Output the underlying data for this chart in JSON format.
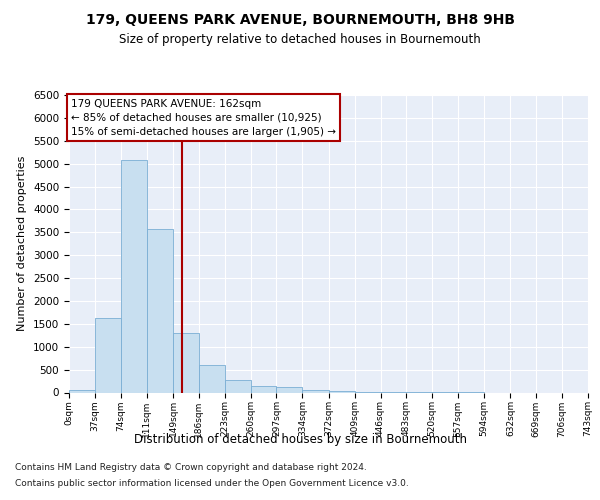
{
  "title": "179, QUEENS PARK AVENUE, BOURNEMOUTH, BH8 9HB",
  "subtitle": "Size of property relative to detached houses in Bournemouth",
  "xlabel": "Distribution of detached houses by size in Bournemouth",
  "ylabel": "Number of detached properties",
  "footnote1": "Contains HM Land Registry data © Crown copyright and database right 2024.",
  "footnote2": "Contains public sector information licensed under the Open Government Licence v3.0.",
  "annotation_line1": "179 QUEENS PARK AVENUE: 162sqm",
  "annotation_line2": "← 85% of detached houses are smaller (10,925)",
  "annotation_line3": "15% of semi-detached houses are larger (1,905) →",
  "property_size": 162,
  "bar_color": "#c8dff0",
  "bar_edge_color": "#7aaed4",
  "vline_color": "#aa0000",
  "background_color": "#e8eef8",
  "bin_edges": [
    0,
    37,
    74,
    111,
    149,
    186,
    223,
    260,
    297,
    334,
    372,
    409,
    446,
    483,
    520,
    557,
    594,
    632,
    669,
    706,
    743
  ],
  "bin_labels": [
    "0sqm",
    "37sqm",
    "74sqm",
    "111sqm",
    "149sqm",
    "186sqm",
    "223sqm",
    "260sqm",
    "297sqm",
    "334sqm",
    "372sqm",
    "409sqm",
    "446sqm",
    "483sqm",
    "520sqm",
    "557sqm",
    "594sqm",
    "632sqm",
    "669sqm",
    "706sqm",
    "743sqm"
  ],
  "counts": [
    60,
    1620,
    5080,
    3570,
    1310,
    590,
    270,
    140,
    110,
    55,
    30,
    15,
    8,
    5,
    5,
    3,
    0,
    0,
    0,
    0
  ],
  "ylim": [
    0,
    6500
  ],
  "yticks": [
    0,
    500,
    1000,
    1500,
    2000,
    2500,
    3000,
    3500,
    4000,
    4500,
    5000,
    5500,
    6000,
    6500
  ]
}
